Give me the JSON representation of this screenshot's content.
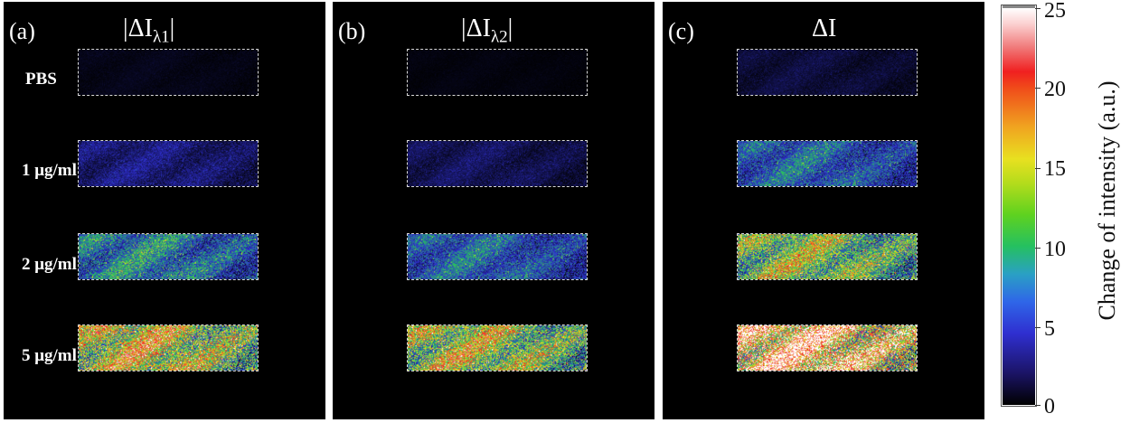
{
  "panels": [
    {
      "id": "a",
      "label": "(a)",
      "title_main": "|ΔI",
      "title_sub": "λ1",
      "title_end": "|"
    },
    {
      "id": "b",
      "label": "(b)",
      "title_main": "|ΔI",
      "title_sub": "λ2",
      "title_end": "|"
    },
    {
      "id": "c",
      "label": "(c)",
      "title_main": "ΔI",
      "title_sub": "",
      "title_end": ""
    }
  ],
  "rows": [
    "PBS",
    "1 μg/ml",
    "2 μg/ml",
    "5 μg/ml"
  ],
  "colorbar": {
    "label": "Change of intensity (a.u.)",
    "ticks": [
      "25",
      "20",
      "15",
      "10",
      "5",
      "0"
    ],
    "min": 0,
    "max": 25,
    "colors": [
      "#000000",
      "#2f2fd0",
      "#25c060",
      "#e8e020",
      "#f02020",
      "#ffffff"
    ]
  },
  "roi_mean_levels": {
    "a": [
      0.5,
      2.5,
      6.5,
      12.5
    ],
    "b": [
      0.3,
      1.8,
      5.5,
      11.5
    ],
    "c": [
      1.2,
      5.5,
      10.5,
      17.5
    ]
  }
}
